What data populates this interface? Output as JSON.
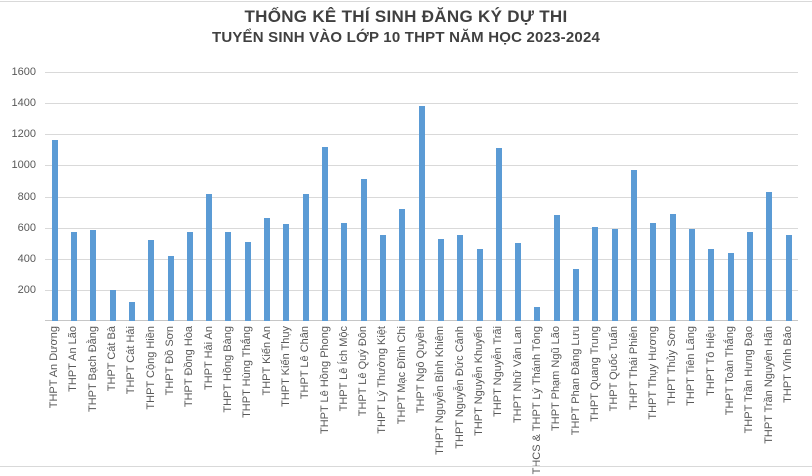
{
  "colors": {
    "bar": "#5B9BD5",
    "gridline": "#D9D9D9",
    "axis_line": "#C6C6C6",
    "axis_text": "#595959",
    "title_text": "#404040",
    "frame_line": "#D9D9D9"
  },
  "chart_data": {
    "type": "bar",
    "title": "THỐNG KÊ THÍ SINH ĐĂNG KÝ DỰ THI",
    "subtitle": "TUYỂN SINH VÀO LỚP 10 THPT NĂM HỌC 2023-2024",
    "xlabel": "",
    "ylabel": "",
    "ylim": [
      0,
      1600
    ],
    "ytick_step": 200,
    "yticks": [
      200,
      400,
      600,
      800,
      1000,
      1200,
      1400,
      1600
    ],
    "grid": true,
    "legend": false,
    "categories": [
      "THPT An Dương",
      "THPT An Lão",
      "THPT Bạch Đằng",
      "THPT Cát Bà",
      "THPT Cát Hải",
      "THPT Cộng Hiền",
      "THPT Đồ Sơn",
      "THPT Đồng Hòa",
      "THPT Hải An",
      "THPT Hồng Bàng",
      "THPT Hùng Thắng",
      "THPT Kiến An",
      "THPT Kiến Thụy",
      "THPT Lê Chân",
      "THPT Lê Hồng Phong",
      "THPT Lê Ích Mộc",
      "THPT Lê Quý Đôn",
      "THPT Lý Thường Kiệt",
      "THPT Mạc Đĩnh Chi",
      "THPT Ngô Quyền",
      "THPT Nguyễn Bỉnh Khiêm",
      "THPT Nguyễn Đức Cảnh",
      "THPT Nguyễn Khuyến",
      "THPT Nguyễn Trãi",
      "THPT Nhữ Văn Lan",
      "THCS & THPT Lý Thánh Tông",
      "THPT Phạm Ngũ Lão",
      "THPT Phan Đăng Lưu",
      "THPT Quang Trung",
      "THPT Quốc Tuấn",
      "THPT Thái Phiên",
      "THPT Thụy Hương",
      "THPT Thủy Sơn",
      "THPT Tiên Lãng",
      "THPT Tô Hiệu",
      "THPT Toàn Thắng",
      "THPT Trần Hưng Đạo",
      "THPT Trần Nguyên Hãn",
      "THPT Vĩnh Bảo"
    ],
    "values": [
      1160,
      570,
      585,
      200,
      125,
      520,
      415,
      570,
      815,
      575,
      510,
      665,
      625,
      815,
      1115,
      630,
      915,
      550,
      720,
      1380,
      525,
      550,
      460,
      1110,
      500,
      90,
      680,
      335,
      605,
      590,
      970,
      630,
      685,
      590,
      460,
      435,
      570,
      830,
      555
    ]
  }
}
